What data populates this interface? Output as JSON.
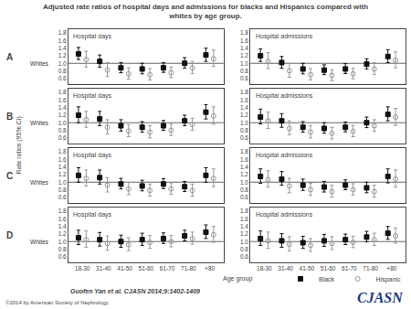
{
  "title": "Adjusted rate ratios of hospital days and admissions for blacks and Hispanics compared with\nwhites by age group.",
  "xlabel": "Age group",
  "ylabel": "Rate ratios (95% CI)",
  "legend": "bottom",
  "annotations": [
    {
      "text": "Guofen Yan et al. CJASN 2014;9:1402-1409"
    },
    {
      "text": "©2014 by American Society of Nephrology"
    },
    {
      "text": "CJASN",
      "color": "#1a3a8a"
    }
  ],
  "chart_data": [
    {
      "type": "scatter",
      "title": "Hospital days",
      "annotations": [
        "A"
      ],
      "grid": false,
      "categories": [
        "18-30",
        "31-40",
        "41-50",
        "51-60",
        "61-70",
        "71-80",
        "+80"
      ],
      "ylim": [
        0.45,
        1.9
      ],
      "yticks": [
        0.6,
        0.8,
        {
          "value": 1.0,
          "label": "1.0"
        },
        1.2,
        1.4,
        1.6,
        1.8
      ],
      "reference_line": {
        "y": 1.0,
        "label": "Whites"
      },
      "series": [
        {
          "name": "Black",
          "color": "#111111",
          "marker": "square",
          "values": [
            1.25,
            1.05,
            0.88,
            0.85,
            0.88,
            1.0,
            1.22
          ],
          "ci_low": [
            1.1,
            0.9,
            0.75,
            0.72,
            0.76,
            0.87,
            1.05
          ],
          "ci_high": [
            1.42,
            1.22,
            1.02,
            1.0,
            1.02,
            1.15,
            1.4
          ]
        },
        {
          "name": "Hispanic",
          "color": "#999999",
          "marker": "circle-open",
          "values": [
            1.1,
            0.82,
            0.72,
            0.7,
            0.75,
            0.88,
            1.12
          ],
          "ci_low": [
            0.9,
            0.65,
            0.58,
            0.56,
            0.62,
            0.73,
            0.92
          ],
          "ci_high": [
            1.32,
            1.02,
            0.88,
            0.86,
            0.9,
            1.05,
            1.35
          ]
        }
      ]
    },
    {
      "type": "scatter",
      "title": "Hospital admissions",
      "grid": false,
      "categories": [
        "18-30",
        "31-40",
        "41-50",
        "51-60",
        "61-70",
        "71-80",
        "+80"
      ],
      "ylim": [
        0.45,
        1.9
      ],
      "yticks": [
        0.6,
        0.8,
        {
          "value": 1.0,
          "label": "1.0"
        },
        1.2,
        1.4,
        1.6,
        1.8
      ],
      "reference_line": {
        "y": 1.0
      },
      "series": [
        {
          "name": "Black",
          "color": "#111111",
          "marker": "square",
          "values": [
            1.2,
            1.02,
            0.85,
            0.82,
            0.85,
            0.98,
            1.18
          ],
          "ci_low": [
            1.05,
            0.87,
            0.72,
            0.7,
            0.73,
            0.85,
            1.02
          ],
          "ci_high": [
            1.38,
            1.18,
            1.0,
            0.96,
            0.99,
            1.12,
            1.36
          ]
        },
        {
          "name": "Hispanic",
          "color": "#999999",
          "marker": "circle-open",
          "values": [
            1.05,
            0.8,
            0.7,
            0.68,
            0.72,
            0.85,
            1.08
          ],
          "ci_low": [
            0.86,
            0.63,
            0.56,
            0.54,
            0.59,
            0.7,
            0.88
          ],
          "ci_high": [
            1.28,
            1.0,
            0.86,
            0.83,
            0.87,
            1.02,
            1.3
          ]
        }
      ]
    },
    {
      "type": "scatter",
      "title": "Hospital days",
      "annotations": [
        "B"
      ],
      "grid": false,
      "categories": [
        "18-30",
        "31-40",
        "41-50",
        "51-60",
        "61-70",
        "71-80",
        "+80"
      ],
      "ylim": [
        0.45,
        1.9
      ],
      "yticks": [
        0.6,
        0.8,
        {
          "value": 1.0,
          "label": "1.0"
        },
        1.2,
        1.4,
        1.6,
        1.8
      ],
      "reference_line": {
        "y": 1.0,
        "label": "Whites"
      },
      "series": [
        {
          "name": "Black",
          "color": "#111111",
          "marker": "square",
          "values": [
            1.2,
            1.1,
            0.92,
            0.88,
            0.92,
            1.05,
            1.28
          ],
          "ci_low": [
            1.0,
            0.92,
            0.78,
            0.75,
            0.8,
            0.92,
            1.1
          ],
          "ci_high": [
            1.42,
            1.3,
            1.08,
            1.03,
            1.06,
            1.2,
            1.48
          ]
        },
        {
          "name": "Hispanic",
          "color": "#999999",
          "marker": "circle-open",
          "values": [
            1.08,
            0.88,
            0.78,
            0.75,
            0.8,
            0.95,
            1.18
          ],
          "ci_low": [
            0.88,
            0.7,
            0.63,
            0.6,
            0.66,
            0.8,
            0.96
          ],
          "ci_high": [
            1.3,
            1.08,
            0.95,
            0.92,
            0.96,
            1.12,
            1.42
          ]
        }
      ]
    },
    {
      "type": "scatter",
      "title": "Hospital admissions",
      "grid": false,
      "categories": [
        "18-30",
        "31-40",
        "41-50",
        "51-60",
        "61-70",
        "71-80",
        "+80"
      ],
      "ylim": [
        0.45,
        1.9
      ],
      "yticks": [
        0.6,
        0.8,
        {
          "value": 1.0,
          "label": "1.0"
        },
        1.2,
        1.4,
        1.6,
        1.8
      ],
      "reference_line": {
        "y": 1.0
      },
      "series": [
        {
          "name": "Black",
          "color": "#111111",
          "marker": "square",
          "values": [
            1.15,
            1.05,
            0.88,
            0.85,
            0.88,
            1.0,
            1.22
          ],
          "ci_low": [
            0.97,
            0.88,
            0.75,
            0.72,
            0.76,
            0.87,
            1.05
          ],
          "ci_high": [
            1.36,
            1.24,
            1.03,
            1.0,
            1.02,
            1.15,
            1.42
          ]
        },
        {
          "name": "Hispanic",
          "color": "#999999",
          "marker": "circle-open",
          "values": [
            1.05,
            0.85,
            0.75,
            0.72,
            0.77,
            0.92,
            1.15
          ],
          "ci_low": [
            0.85,
            0.68,
            0.6,
            0.57,
            0.63,
            0.77,
            0.93
          ],
          "ci_high": [
            1.28,
            1.05,
            0.92,
            0.88,
            0.93,
            1.08,
            1.38
          ]
        }
      ]
    },
    {
      "type": "scatter",
      "title": "Hospital days",
      "annotations": [
        "C"
      ],
      "grid": false,
      "categories": [
        "18-30",
        "31-40",
        "41-50",
        "51-60",
        "61-70",
        "71-80",
        "+80"
      ],
      "ylim": [
        0.45,
        1.9
      ],
      "yticks": [
        0.6,
        0.8,
        {
          "value": 1.0,
          "label": "1.0"
        },
        1.2,
        1.4,
        1.6,
        1.8
      ],
      "reference_line": {
        "y": 1.0,
        "label": "Whites"
      },
      "series": [
        {
          "name": "Black",
          "color": "#111111",
          "marker": "square",
          "values": [
            1.18,
            1.12,
            0.95,
            0.9,
            0.95,
            0.88,
            1.18
          ],
          "ci_low": [
            1.0,
            0.95,
            0.82,
            0.77,
            0.83,
            0.75,
            1.0
          ],
          "ci_high": [
            1.38,
            1.32,
            1.1,
            1.05,
            1.09,
            1.02,
            1.38
          ]
        },
        {
          "name": "Hispanic",
          "color": "#999999",
          "marker": "circle-open",
          "values": [
            1.1,
            0.92,
            0.82,
            0.78,
            0.82,
            0.78,
            1.1
          ],
          "ci_low": [
            0.9,
            0.74,
            0.67,
            0.63,
            0.68,
            0.63,
            0.88
          ],
          "ci_high": [
            1.32,
            1.12,
            0.99,
            0.95,
            0.98,
            0.95,
            1.35
          ]
        }
      ]
    },
    {
      "type": "scatter",
      "title": "Hospital admissions",
      "grid": false,
      "categories": [
        "18-30",
        "31-40",
        "41-50",
        "51-60",
        "61-70",
        "71-80",
        "+80"
      ],
      "ylim": [
        0.45,
        1.9
      ],
      "yticks": [
        0.6,
        0.8,
        {
          "value": 1.0,
          "label": "1.0"
        },
        1.2,
        1.4,
        1.6,
        1.8
      ],
      "reference_line": {
        "y": 1.0
      },
      "series": [
        {
          "name": "Black",
          "color": "#111111",
          "marker": "square",
          "values": [
            1.15,
            1.08,
            0.92,
            0.87,
            0.92,
            0.85,
            1.15
          ],
          "ci_low": [
            0.97,
            0.92,
            0.78,
            0.74,
            0.8,
            0.72,
            0.98
          ],
          "ci_high": [
            1.35,
            1.28,
            1.08,
            1.02,
            1.06,
            1.0,
            1.35
          ]
        },
        {
          "name": "Hispanic",
          "color": "#999999",
          "marker": "circle-open",
          "values": [
            1.07,
            0.9,
            0.8,
            0.75,
            0.8,
            0.75,
            1.08
          ],
          "ci_low": [
            0.87,
            0.72,
            0.65,
            0.6,
            0.66,
            0.6,
            0.87
          ],
          "ci_high": [
            1.3,
            1.1,
            0.97,
            0.92,
            0.96,
            0.92,
            1.32
          ]
        }
      ]
    },
    {
      "type": "scatter",
      "title": "Hospital days",
      "annotations": [
        "D"
      ],
      "grid": false,
      "categories": [
        "18-30",
        "31-40",
        "41-50",
        "51-60",
        "61-70",
        "71-80",
        "+80"
      ],
      "ylim": [
        0.45,
        1.9
      ],
      "yticks": [
        0.6,
        0.8,
        {
          "value": 1.0,
          "label": "1.0"
        },
        1.2,
        1.4,
        1.6,
        1.8
      ],
      "reference_line": {
        "y": 1.0,
        "label": "Whites"
      },
      "series": [
        {
          "name": "Black",
          "color": "#111111",
          "marker": "square",
          "values": [
            1.1,
            1.05,
            1.0,
            1.05,
            1.08,
            1.15,
            1.25
          ],
          "ci_low": [
            0.92,
            0.88,
            0.85,
            0.9,
            0.95,
            1.02,
            1.08
          ],
          "ci_high": [
            1.3,
            1.24,
            1.17,
            1.22,
            1.23,
            1.3,
            1.44
          ]
        },
        {
          "name": "Hispanic",
          "color": "#999999",
          "marker": "circle-open",
          "values": [
            1.05,
            0.95,
            0.92,
            0.98,
            1.0,
            1.08,
            1.18
          ],
          "ci_low": [
            0.85,
            0.77,
            0.76,
            0.82,
            0.86,
            0.93,
            0.98
          ],
          "ci_high": [
            1.28,
            1.15,
            1.1,
            1.16,
            1.16,
            1.25,
            1.4
          ]
        }
      ]
    },
    {
      "type": "scatter",
      "title": "Hospital admissions",
      "grid": false,
      "categories": [
        "18-30",
        "31-40",
        "41-50",
        "51-60",
        "61-70",
        "71-80",
        "+80"
      ],
      "ylim": [
        0.45,
        1.9
      ],
      "yticks": [
        0.6,
        0.8,
        {
          "value": 1.0,
          "label": "1.0"
        },
        1.2,
        1.4,
        1.6,
        1.8
      ],
      "reference_line": {
        "y": 1.0
      },
      "series": [
        {
          "name": "Black",
          "color": "#111111",
          "marker": "square",
          "values": [
            1.08,
            1.02,
            0.97,
            1.02,
            1.05,
            1.12,
            1.22
          ],
          "ci_low": [
            0.9,
            0.85,
            0.82,
            0.87,
            0.92,
            0.99,
            1.06
          ],
          "ci_high": [
            1.28,
            1.21,
            1.14,
            1.19,
            1.2,
            1.27,
            1.4
          ]
        },
        {
          "name": "Hispanic",
          "color": "#999999",
          "marker": "circle-open",
          "values": [
            1.02,
            0.93,
            0.9,
            0.95,
            0.98,
            1.05,
            1.15
          ],
          "ci_low": [
            0.82,
            0.75,
            0.74,
            0.79,
            0.84,
            0.9,
            0.96
          ],
          "ci_high": [
            1.25,
            1.13,
            1.08,
            1.13,
            1.14,
            1.22,
            1.36
          ]
        }
      ]
    }
  ]
}
